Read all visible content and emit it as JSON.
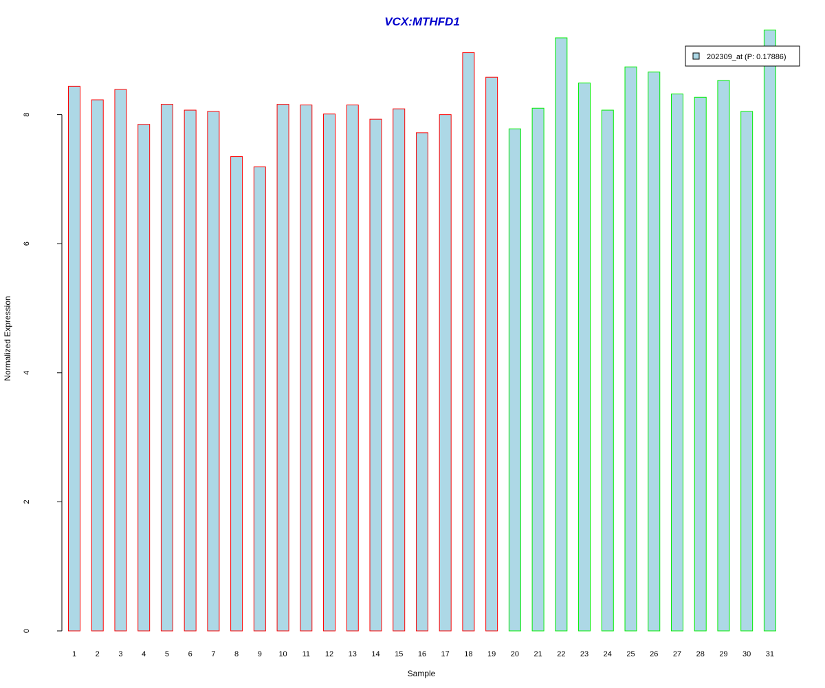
{
  "chart_data": {
    "type": "bar",
    "title": "VCX:MTHFD1",
    "title_color": "#0000cc",
    "xlabel": "Sample",
    "ylabel": "Normalized Expression",
    "ylim": [
      0,
      9.35
    ],
    "yticks": [
      0,
      2,
      4,
      6,
      8
    ],
    "grid": false,
    "legend_position": "top-right",
    "bar_fill_color": "#add8e6",
    "group_colors": {
      "group_1": "#ff0000",
      "group_2": "#00ee00"
    },
    "categories": [
      "1",
      "2",
      "3",
      "4",
      "5",
      "6",
      "7",
      "8",
      "9",
      "10",
      "11",
      "12",
      "13",
      "14",
      "15",
      "16",
      "17",
      "18",
      "19",
      "20",
      "21",
      "22",
      "23",
      "24",
      "25",
      "26",
      "27",
      "28",
      "29",
      "30",
      "31"
    ],
    "groups": [
      "group_1",
      "group_1",
      "group_1",
      "group_1",
      "group_1",
      "group_1",
      "group_1",
      "group_1",
      "group_1",
      "group_1",
      "group_1",
      "group_1",
      "group_1",
      "group_1",
      "group_1",
      "group_1",
      "group_1",
      "group_1",
      "group_1",
      "group_2",
      "group_2",
      "group_2",
      "group_2",
      "group_2",
      "group_2",
      "group_2",
      "group_2",
      "group_2",
      "group_2",
      "group_2",
      "group_2"
    ],
    "series": [
      {
        "name": "202309_at (P: 0.17886)",
        "values": [
          8.44,
          8.23,
          8.39,
          7.85,
          8.16,
          8.07,
          8.05,
          7.35,
          7.19,
          8.16,
          8.15,
          8.01,
          8.15,
          7.93,
          8.09,
          7.72,
          8.0,
          8.96,
          8.58,
          7.78,
          8.1,
          9.19,
          8.49,
          8.07,
          8.74,
          8.66,
          8.32,
          8.27,
          8.53,
          8.05,
          9.31
        ]
      }
    ]
  }
}
